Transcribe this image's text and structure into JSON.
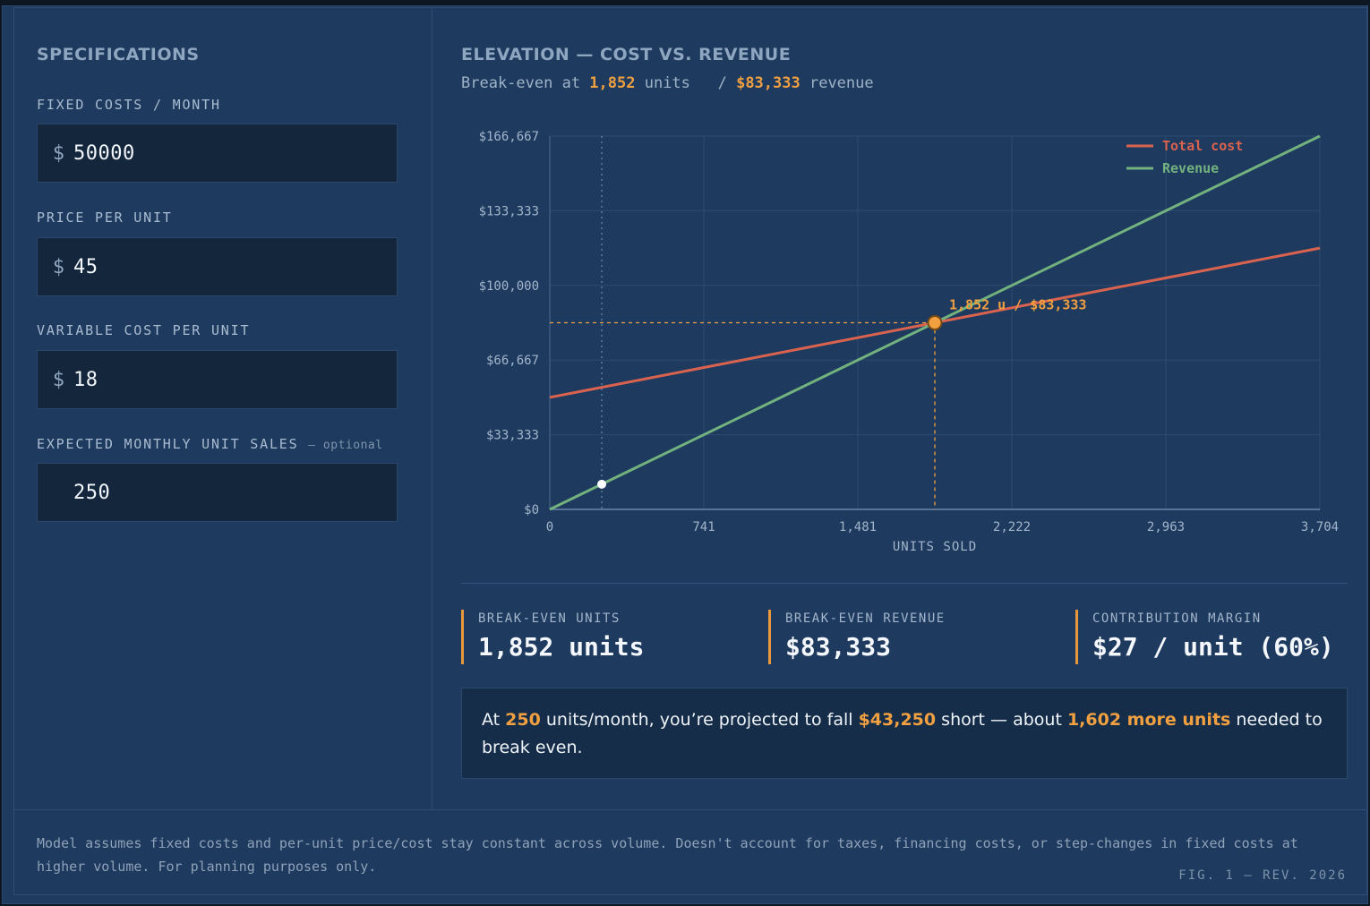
{
  "specs": {
    "title": "SPECIFICATIONS",
    "fields": [
      {
        "label": "FIXED COSTS / MONTH",
        "currency": "$",
        "value": "50000"
      },
      {
        "label": "PRICE PER UNIT",
        "currency": "$",
        "value": "45"
      },
      {
        "label": "VARIABLE COST PER UNIT",
        "currency": "$",
        "value": "18"
      },
      {
        "label": "EXPECTED MONTHLY UNIT SALES",
        "optional": "— optional",
        "currency": "",
        "value": "250"
      }
    ]
  },
  "chart_header": {
    "title": "ELEVATION — COST VS. REVENUE",
    "sub_prefix": "Break-even at ",
    "sub_units": "1,852",
    "sub_mid": " units   / ",
    "sub_revenue": "$83,333",
    "sub_suffix": " revenue"
  },
  "chart_data": {
    "type": "line",
    "xlabel": "UNITS SOLD",
    "ylabel": "",
    "xlim": [
      0,
      3704
    ],
    "ylim": [
      0,
      166667
    ],
    "x_ticks": [
      "0",
      "741",
      "1,481",
      "2,222",
      "2,963",
      "3,704"
    ],
    "y_ticks": [
      "$0",
      "$33,333",
      "$66,667",
      "$100,000",
      "$133,333",
      "$166,667"
    ],
    "grid": true,
    "legend_position": "top-right",
    "series": [
      {
        "name": "Total cost",
        "color": "#d9634f",
        "x": [
          0,
          3704
        ],
        "y": [
          50000,
          116667
        ]
      },
      {
        "name": "Revenue",
        "color": "#72b27e",
        "x": [
          0,
          3704
        ],
        "y": [
          0,
          166667
        ]
      }
    ],
    "break_even": {
      "x": 1852,
      "y": 83333,
      "label": "1,852 u / $83,333",
      "color": "#f0a040"
    },
    "expected_point": {
      "x": 250,
      "y": 11250
    }
  },
  "stats": [
    {
      "label": "BREAK-EVEN UNITS",
      "value": "1,852 units"
    },
    {
      "label": "BREAK-EVEN REVENUE",
      "value": "$83,333"
    },
    {
      "label": "CONTRIBUTION MARGIN",
      "value": "$27 / unit (60%)"
    }
  ],
  "callout": {
    "t1": "At ",
    "units": "250",
    "t2": " units/month, you’re projected to fall ",
    "short": "$43,250",
    "t3": " short — about ",
    "more": "1,602 more units",
    "t4": " needed to break even."
  },
  "footnote": "Model assumes fixed costs and per-unit price/cost stay constant across volume. Doesn't account for taxes, financing costs, or step-changes in fixed costs at higher volume. For planning purposes only.",
  "fig_label": "FIG. 1 — REV. 2026"
}
